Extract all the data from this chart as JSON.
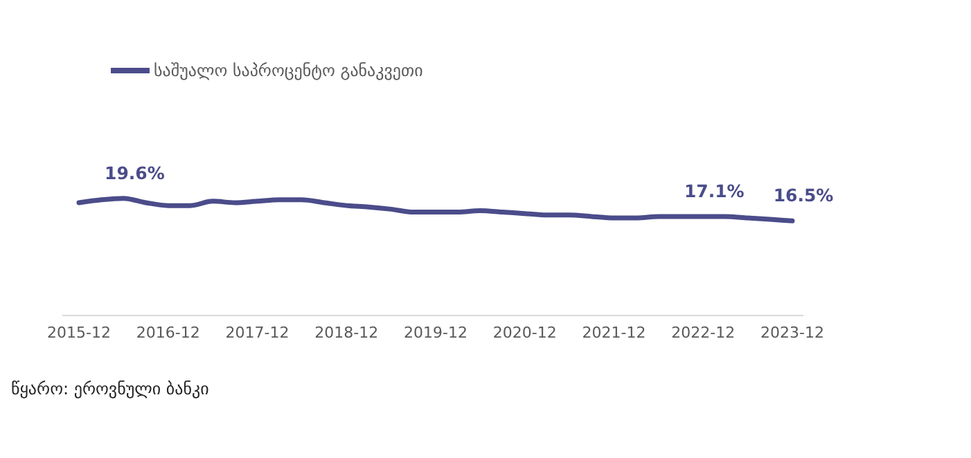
{
  "chart_data": {
    "type": "line",
    "categories": [
      "2015-12",
      null,
      null,
      null,
      "2016-12",
      null,
      null,
      null,
      "2017-12",
      null,
      null,
      null,
      "2018-12",
      null,
      null,
      null,
      "2019-12",
      null,
      null,
      null,
      "2020-12",
      null,
      null,
      null,
      "2021-12",
      null,
      null,
      null,
      "2022-12",
      null,
      null,
      null,
      "2023-12"
    ],
    "series": [
      {
        "name": "საშუალო საპროცენტო განაკვეთი",
        "color": "#4b4c8a",
        "values": [
          19.0,
          19.4,
          19.6,
          19.0,
          18.6,
          18.6,
          19.2,
          19.0,
          19.2,
          19.4,
          19.4,
          19.0,
          18.6,
          18.4,
          18.1,
          17.7,
          17.7,
          17.7,
          17.9,
          17.7,
          17.5,
          17.3,
          17.3,
          17.1,
          16.9,
          16.9,
          17.1,
          17.1,
          17.1,
          17.1,
          16.9,
          16.7,
          16.5
        ],
        "value_labels": [
          null,
          null,
          "19.6%",
          null,
          null,
          null,
          null,
          null,
          null,
          null,
          null,
          null,
          null,
          null,
          null,
          null,
          null,
          null,
          null,
          null,
          null,
          null,
          null,
          null,
          null,
          null,
          null,
          null,
          "17.1%",
          null,
          null,
          null,
          "16.5%"
        ]
      }
    ],
    "tick_labels": "x",
    "grid": false,
    "legend": "top left",
    "marker": "none",
    "line_style": "solid",
    "annotations": [
      "წყარო: ეროვნული ბანკი"
    ]
  }
}
